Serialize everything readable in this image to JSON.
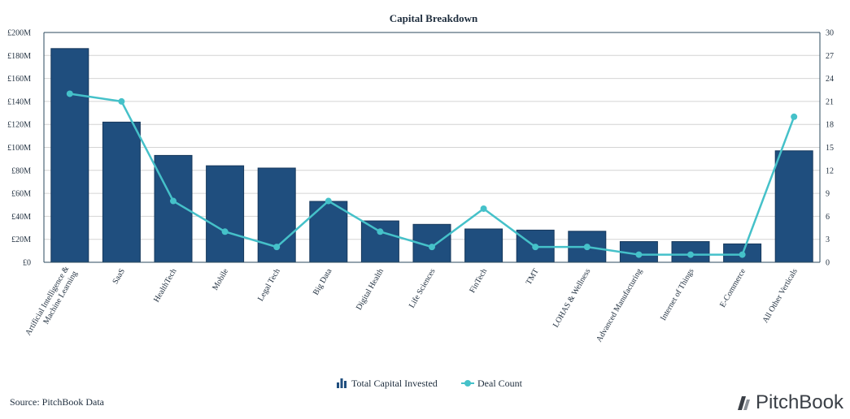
{
  "chart_data": {
    "type": "bar",
    "title": "Capital Breakdown",
    "categories": [
      "Artificial Intelligence & Machine Learning",
      "SaaS",
      "HealthTech",
      "Mobile",
      "Legal Tech",
      "Big Data",
      "Digital Health",
      "Life Sciences",
      "FinTech",
      "TMT",
      "LOHAS & Wellness",
      "Advanced Manufacturing",
      "Internet of Things",
      "E-Commerce",
      "All Other Verticals"
    ],
    "series": [
      {
        "name": "Total Capital Invested",
        "type": "bar",
        "axis": "left",
        "values": [
          186,
          122,
          93,
          84,
          82,
          53,
          36,
          33,
          29,
          28,
          27,
          18,
          18,
          16,
          97
        ]
      },
      {
        "name": "Deal Count",
        "type": "line",
        "axis": "right",
        "values": [
          22,
          21,
          8,
          4,
          2,
          8,
          4,
          2,
          7,
          2,
          2,
          1,
          1,
          1,
          19
        ]
      }
    ],
    "ylim_left": [
      0,
      200
    ],
    "yticks_left": [
      "£0",
      "£20M",
      "£40M",
      "£60M",
      "£80M",
      "£100M",
      "£120M",
      "£140M",
      "£160M",
      "£180M",
      "£200M"
    ],
    "ylim_right": [
      0,
      30
    ],
    "yticks_right": [
      "0",
      "3",
      "6",
      "9",
      "12",
      "15",
      "18",
      "21",
      "24",
      "27",
      "30"
    ],
    "grid": true,
    "legend_position": "bottom-center",
    "colors": {
      "bar": "#1f4e7e",
      "line": "#45c1c9",
      "grid": "#d4d4d4",
      "axis": "#2b4a5e"
    }
  },
  "footer": {
    "source": "Source: PitchBook Data",
    "logo": "PitchBook"
  }
}
